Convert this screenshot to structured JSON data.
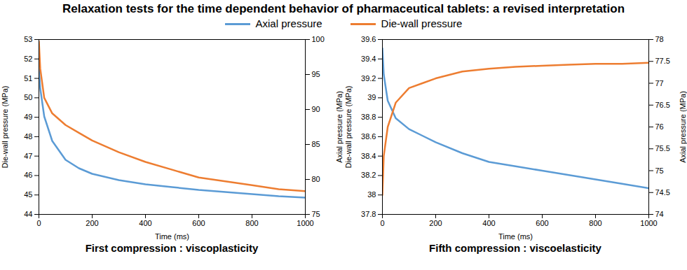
{
  "title": "Relaxation tests for the time dependent behavior of pharmaceutical tablets: a revised interpretation",
  "chart_data": [
    {
      "type": "line",
      "caption": "First compression : viscoplasticity",
      "xlabel": "Time (ms)",
      "ylabel": "Die-wall pressure (MPa)",
      "y2label": "Axial pressure (MPa)",
      "x": [
        0,
        5,
        20,
        50,
        100,
        150,
        200,
        300,
        400,
        500,
        600,
        700,
        800,
        900,
        1000
      ],
      "xlim": [
        0,
        1000
      ],
      "xticks": [
        0,
        200,
        400,
        600,
        800,
        1000
      ],
      "ylim": [
        44,
        53
      ],
      "yticks": [
        44,
        45,
        46,
        47,
        48,
        49,
        50,
        51,
        52,
        53
      ],
      "y2lim": [
        75,
        100
      ],
      "y2ticks": [
        75,
        80,
        85,
        90,
        95,
        100
      ],
      "series": [
        {
          "name": "Axial pressure",
          "color": "#5b9bd5",
          "axis": "y2",
          "values": [
            95.8,
            93,
            89,
            85.5,
            82.8,
            81.6,
            80.8,
            79.9,
            79.3,
            78.9,
            78.5,
            78.2,
            77.9,
            77.6,
            77.4
          ]
        },
        {
          "name": "Die-wall pressure",
          "color": "#ed7d31",
          "axis": "y",
          "values": [
            52.9,
            51.5,
            50,
            49.2,
            48.6,
            48.2,
            47.8,
            47.2,
            46.7,
            46.3,
            45.9,
            45.7,
            45.5,
            45.3,
            45.2
          ]
        }
      ]
    },
    {
      "type": "line",
      "caption": "Fifth compression : viscoelasticity",
      "xlabel": "Time (ms)",
      "ylabel": "Die-wall pressure (MPa)",
      "y2label": "Axial pressure (MPa)",
      "x": [
        0,
        5,
        20,
        50,
        100,
        150,
        200,
        300,
        400,
        500,
        600,
        700,
        800,
        900,
        1000
      ],
      "xlim": [
        0,
        1000
      ],
      "xticks": [
        0,
        200,
        400,
        600,
        800,
        1000
      ],
      "ylim": [
        37.8,
        39.6
      ],
      "yticks": [
        37.8,
        38,
        38.2,
        38.4,
        38.6,
        38.8,
        39,
        39.2,
        39.4,
        39.6
      ],
      "y2lim": [
        74,
        78
      ],
      "y2ticks": [
        74,
        74.5,
        75,
        75.5,
        76,
        76.5,
        77,
        77.5,
        78
      ],
      "series": [
        {
          "name": "Axial pressure",
          "color": "#5b9bd5",
          "axis": "y2",
          "values": [
            77.8,
            77.2,
            76.6,
            76.2,
            75.95,
            75.8,
            75.65,
            75.4,
            75.2,
            75.1,
            75,
            74.9,
            74.8,
            74.7,
            74.6
          ]
        },
        {
          "name": "Die-wall pressure",
          "color": "#ed7d31",
          "axis": "y",
          "values": [
            38,
            38.4,
            38.7,
            38.95,
            39.1,
            39.15,
            39.2,
            39.27,
            39.3,
            39.32,
            39.33,
            39.34,
            39.35,
            39.35,
            39.36
          ]
        }
      ]
    }
  ]
}
